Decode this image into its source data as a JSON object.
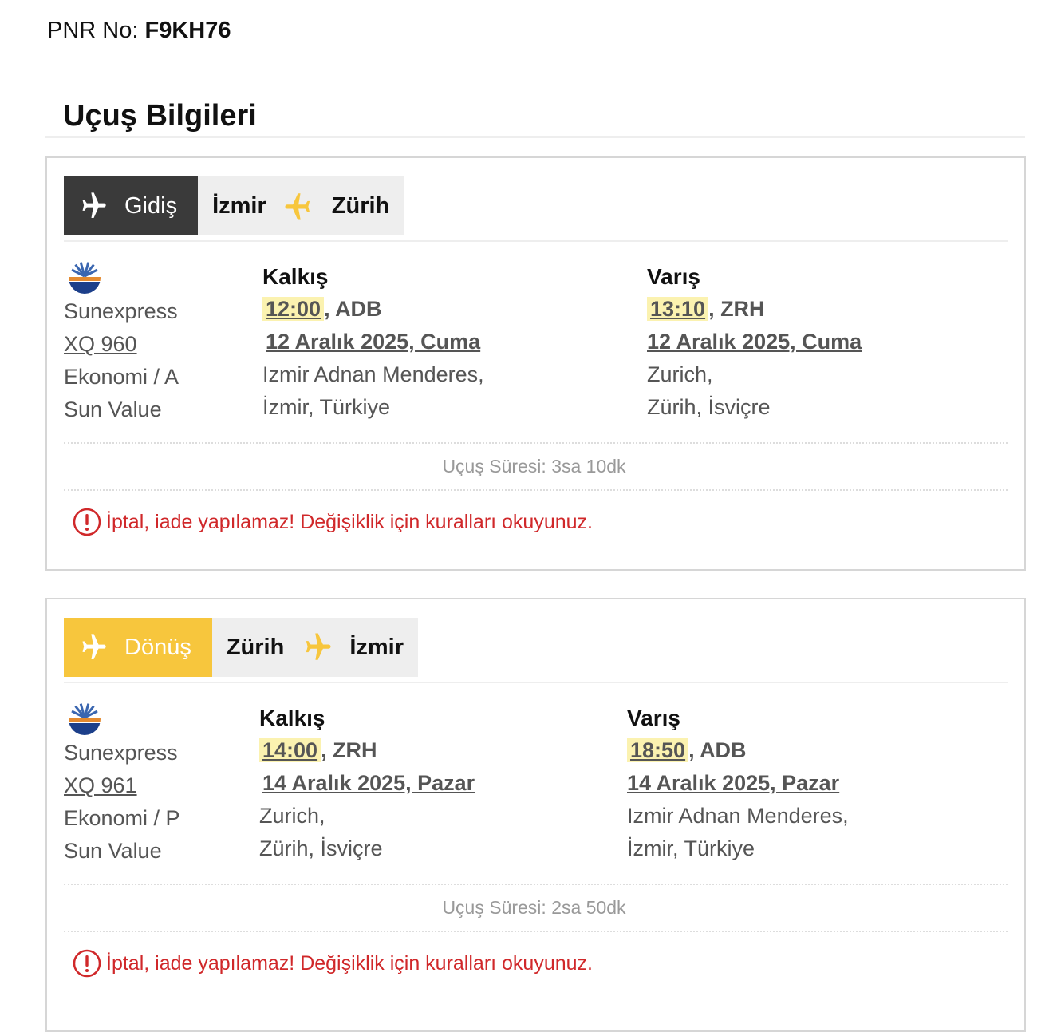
{
  "pnr": {
    "label": "PNR No:",
    "value": "F9KH76"
  },
  "section_title": "Uçuş Bilgileri",
  "colors": {
    "outbound_tab": "#3a3a3a",
    "return_tab": "#f7c63d",
    "plane_accent": "#f7c63d",
    "time_highlight": "#fbf2b0",
    "warning": "#d0282a"
  },
  "flights": [
    {
      "direction": "Gidiş",
      "from": "İzmir",
      "to": "Zürih",
      "airline": "Sunexpress",
      "flight_no": "XQ 960",
      "cabin": "Ekonomi / A",
      "fare": "Sun Value",
      "dep": {
        "label": "Kalkış",
        "time": "12:00",
        "code": ", ADB",
        "date": "12 Aralık 2025, Cuma",
        "airport": "Izmir Adnan Menderes,",
        "city": "İzmir, Türkiye"
      },
      "arr": {
        "label": "Varış",
        "time": "13:10",
        "code": ", ZRH",
        "date": "12 Aralık 2025, Cuma",
        "airport": "Zurich,",
        "city": "Zürih, İsviçre"
      },
      "duration": "Uçuş Süresi: 3sa 10dk",
      "warning": "İptal, iade yapılamaz! Değişiklik için kuralları okuyunuz."
    },
    {
      "direction": "Dönüş",
      "from": "Zürih",
      "to": "İzmir",
      "airline": "Sunexpress",
      "flight_no": "XQ 961",
      "cabin": "Ekonomi / P",
      "fare": "Sun Value",
      "dep": {
        "label": "Kalkış",
        "time": "14:00",
        "code": ", ZRH",
        "date": "14 Aralık 2025, Pazar",
        "airport": "Zurich,",
        "city": "Zürih, İsviçre"
      },
      "arr": {
        "label": "Varış",
        "time": "18:50",
        "code": ", ADB",
        "date": "14 Aralık 2025, Pazar",
        "airport": "Izmir Adnan Menderes,",
        "city": "İzmir, Türkiye"
      },
      "duration": "Uçuş Süresi: 2sa 50dk",
      "warning": "İptal, iade yapılamaz! Değişiklik için kuralları okuyunuz."
    }
  ]
}
